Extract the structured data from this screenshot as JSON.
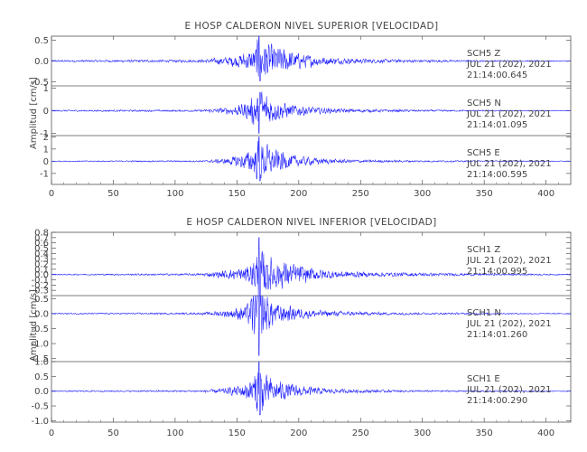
{
  "colors": {
    "trace": "#1a1aff",
    "axis": "#555555",
    "text": "#444444",
    "background": "#ffffff"
  },
  "chart_data": [
    {
      "type": "line",
      "title": "E HOSP CALDERON NIVEL SUPERIOR [VELOCIDAD]",
      "ylabel": "Amplitud [cm/s]",
      "xlabel": "",
      "xlim": [
        0,
        420
      ],
      "x_ticks": [
        "0",
        "50",
        "100",
        "150",
        "200",
        "250",
        "300",
        "350",
        "400"
      ],
      "grid": false,
      "panels": [
        {
          "station": "SCH5",
          "component": "Z",
          "date": "JUL 21 (202), 2021",
          "time": "21:14:00.645",
          "ylim": [
            -0.6,
            0.6
          ],
          "y_ticks": [
            "0.5",
            "0.0",
            "-0.5"
          ],
          "peak_amplitude": 0.6,
          "envelope": [
            [
              0,
              0.02
            ],
            [
              120,
              0.03
            ],
            [
              128,
              0.05
            ],
            [
              140,
              0.09
            ],
            [
              150,
              0.14
            ],
            [
              160,
              0.22
            ],
            [
              165,
              0.34
            ],
            [
              168,
              0.55
            ],
            [
              172,
              0.42
            ],
            [
              180,
              0.33
            ],
            [
              190,
              0.26
            ],
            [
              200,
              0.18
            ],
            [
              215,
              0.11
            ],
            [
              230,
              0.07
            ],
            [
              260,
              0.045
            ],
            [
              300,
              0.03
            ],
            [
              340,
              0.02
            ],
            [
              380,
              0.015
            ],
            [
              420,
              0.012
            ]
          ]
        },
        {
          "station": "SCH5",
          "component": "N",
          "date": "JUL 21 (202), 2021",
          "time": "21:14:01.095",
          "ylim": [
            -1.1,
            1.1
          ],
          "y_ticks": [
            "1",
            "0",
            "-1"
          ],
          "peak_amplitude": 1.0,
          "envelope": [
            [
              0,
              0.03
            ],
            [
              120,
              0.04
            ],
            [
              128,
              0.07
            ],
            [
              140,
              0.12
            ],
            [
              150,
              0.2
            ],
            [
              160,
              0.4
            ],
            [
              165,
              0.7
            ],
            [
              168,
              0.95
            ],
            [
              172,
              0.8
            ],
            [
              180,
              0.45
            ],
            [
              190,
              0.3
            ],
            [
              200,
              0.22
            ],
            [
              215,
              0.13
            ],
            [
              230,
              0.09
            ],
            [
              260,
              0.06
            ],
            [
              300,
              0.04
            ],
            [
              340,
              0.03
            ],
            [
              380,
              0.02
            ],
            [
              420,
              0.015
            ]
          ]
        },
        {
          "station": "SCH5",
          "component": "E",
          "date": "JUL 21 (202), 2021",
          "time": "21:14:00.595",
          "ylim": [
            -1.9,
            2.1
          ],
          "y_ticks": [
            "2",
            "1",
            "0",
            "-1"
          ],
          "peak_amplitude": 2.0,
          "envelope": [
            [
              0,
              0.04
            ],
            [
              120,
              0.06
            ],
            [
              128,
              0.1
            ],
            [
              140,
              0.2
            ],
            [
              150,
              0.4
            ],
            [
              160,
              0.8
            ],
            [
              165,
              1.2
            ],
            [
              168,
              1.6
            ],
            [
              172,
              1.4
            ],
            [
              180,
              0.9
            ],
            [
              190,
              0.6
            ],
            [
              200,
              0.4
            ],
            [
              215,
              0.25
            ],
            [
              230,
              0.15
            ],
            [
              260,
              0.1
            ],
            [
              300,
              0.07
            ],
            [
              340,
              0.05
            ],
            [
              380,
              0.04
            ],
            [
              420,
              0.03
            ]
          ]
        }
      ]
    },
    {
      "type": "line",
      "title": "E HOSP CALDERON NIVEL INFERIOR [VELOCIDAD]",
      "ylabel": "Amplitud [cm/s]",
      "xlabel": "",
      "xlim": [
        0,
        420
      ],
      "x_ticks": [
        "0",
        "50",
        "100",
        "150",
        "200",
        "250",
        "300",
        "350",
        "400"
      ],
      "grid": false,
      "panels": [
        {
          "station": "SCH1",
          "component": "Z",
          "date": "JUL 21 (202), 2021",
          "time": "21:14:00.995",
          "ylim": [
            -0.4,
            0.8
          ],
          "y_ticks": [
            "0.8",
            "0.7",
            "0.6",
            "0.5",
            "0.4",
            "0.3",
            "0.2",
            "0.1",
            "0.0",
            "-0.1",
            "-0.2",
            "-0.3"
          ],
          "peak_amplitude": 0.7,
          "envelope": [
            [
              0,
              0.01
            ],
            [
              120,
              0.02
            ],
            [
              128,
              0.04
            ],
            [
              140,
              0.07
            ],
            [
              150,
              0.1
            ],
            [
              160,
              0.17
            ],
            [
              165,
              0.3
            ],
            [
              168,
              0.55
            ],
            [
              172,
              0.35
            ],
            [
              180,
              0.26
            ],
            [
              190,
              0.22
            ],
            [
              200,
              0.16
            ],
            [
              215,
              0.1
            ],
            [
              230,
              0.065
            ],
            [
              260,
              0.04
            ],
            [
              300,
              0.03
            ],
            [
              340,
              0.02
            ],
            [
              380,
              0.015
            ],
            [
              420,
              0.01
            ]
          ]
        },
        {
          "station": "SCH1",
          "component": "N",
          "date": "JUL 21 (202), 2021",
          "time": "21:14:01.260",
          "ylim": [
            -1.6,
            0.6
          ],
          "y_ticks": [
            "0.5",
            "0.0",
            "-0.5",
            "-1.0",
            "-1.5"
          ],
          "peak_amplitude": 1.4,
          "envelope": [
            [
              0,
              0.02
            ],
            [
              120,
              0.03
            ],
            [
              128,
              0.06
            ],
            [
              140,
              0.1
            ],
            [
              150,
              0.18
            ],
            [
              160,
              0.35
            ],
            [
              165,
              0.9
            ],
            [
              168,
              1.3
            ],
            [
              172,
              0.7
            ],
            [
              180,
              0.35
            ],
            [
              190,
              0.25
            ],
            [
              200,
              0.18
            ],
            [
              215,
              0.11
            ],
            [
              230,
              0.08
            ],
            [
              260,
              0.05
            ],
            [
              300,
              0.035
            ],
            [
              340,
              0.025
            ],
            [
              380,
              0.02
            ],
            [
              420,
              0.015
            ]
          ]
        },
        {
          "station": "SCH1",
          "component": "E",
          "date": "JUL 21 (202), 2021",
          "time": "21:14:00.290",
          "ylim": [
            -1.05,
            1.0
          ],
          "y_ticks": [
            "1.0",
            "0.5",
            "0.0",
            "-0.5",
            "-1.0"
          ],
          "peak_amplitude": 1.0,
          "envelope": [
            [
              0,
              0.02
            ],
            [
              120,
              0.03
            ],
            [
              128,
              0.05
            ],
            [
              140,
              0.09
            ],
            [
              150,
              0.15
            ],
            [
              160,
              0.3
            ],
            [
              165,
              0.6
            ],
            [
              168,
              0.95
            ],
            [
              172,
              0.55
            ],
            [
              180,
              0.35
            ],
            [
              190,
              0.25
            ],
            [
              200,
              0.18
            ],
            [
              215,
              0.11
            ],
            [
              230,
              0.07
            ],
            [
              260,
              0.045
            ],
            [
              300,
              0.03
            ],
            [
              340,
              0.022
            ],
            [
              380,
              0.018
            ],
            [
              420,
              0.014
            ]
          ]
        }
      ]
    }
  ]
}
